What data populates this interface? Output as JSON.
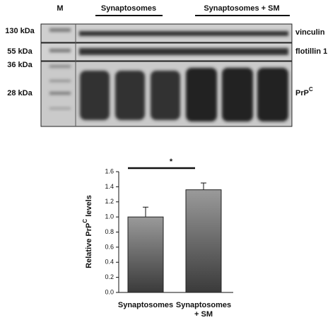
{
  "blot": {
    "marker_lane": "M",
    "groups": [
      "Synaptosomes",
      "Synaptosomes + SM"
    ],
    "kda_labels": [
      "130 kDa",
      "55 kDa",
      "36 kDa",
      "28 kDa"
    ],
    "proteins": [
      "vinculin",
      "flotillin 1"
    ],
    "prp": {
      "base": "PrP",
      "sup": "C"
    }
  },
  "chart_data": {
    "type": "bar",
    "ylabel": [
      "Relative PrP",
      "C",
      " levels"
    ],
    "categories": [
      "Synaptosomes",
      "Synaptosomes + SM"
    ],
    "values": [
      1.0,
      1.36
    ],
    "errors": [
      0.13,
      0.09
    ],
    "ylim": [
      0,
      1.6
    ],
    "yticks": [
      {
        "value": 0,
        "label": "0.0"
      },
      0.2,
      0.4,
      0.6,
      0.8,
      {
        "value": 1,
        "label": "1.0"
      },
      1.2,
      1.4,
      1.6
    ],
    "annotation": "*"
  }
}
